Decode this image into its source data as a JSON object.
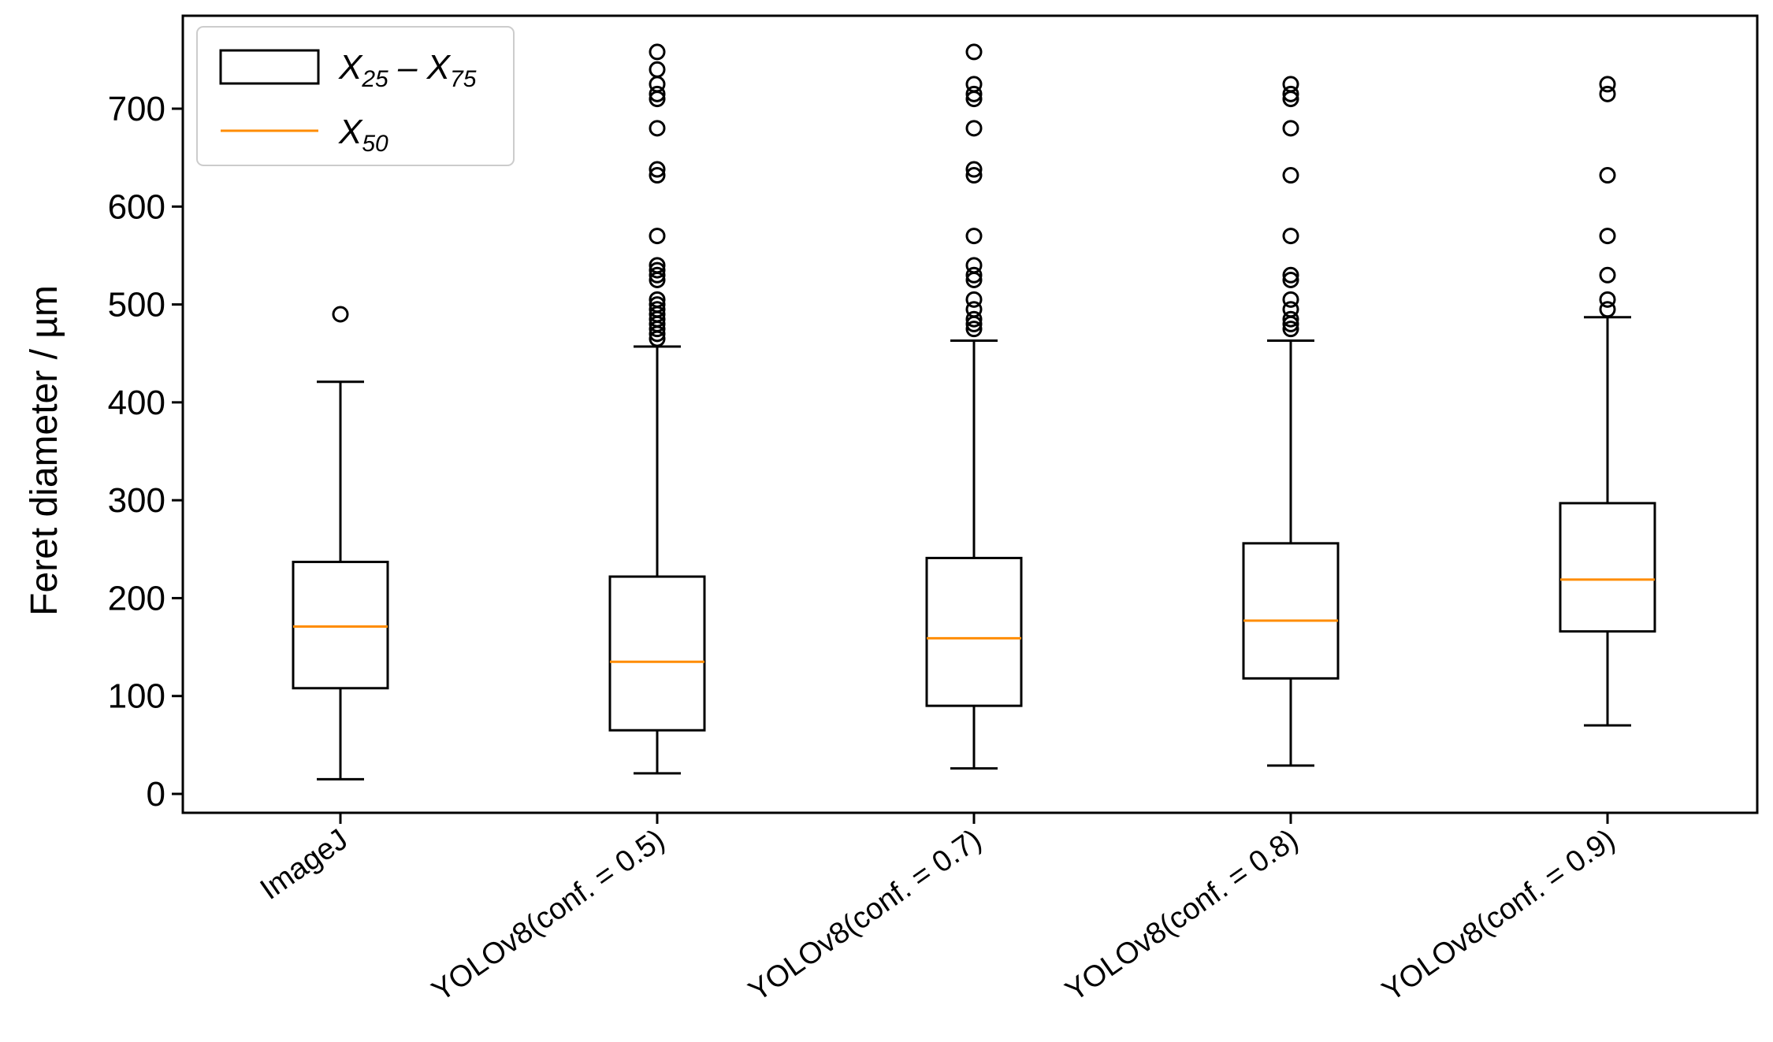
{
  "chart_data": {
    "type": "box",
    "ylabel": "Feret diameter / µm",
    "xlabel": "",
    "ylim": [
      -20,
      780
    ],
    "yticks": [
      0,
      100,
      200,
      300,
      400,
      500,
      600,
      700
    ],
    "grid": false,
    "legend_position": "top-left",
    "legend": {
      "box": {
        "main": "X",
        "sub1": "25",
        "dash": " – ",
        "main2": "X",
        "sub2": "75"
      },
      "median": {
        "main": "X",
        "sub": "50"
      }
    },
    "colors": {
      "box": "#000000",
      "median": "#ff8c00",
      "outlier": "#000000"
    },
    "categories": [
      "ImageJ",
      "YOLOv8(conf. = 0.5)",
      "YOLOv8(conf. = 0.7)",
      "YOLOv8(conf. = 0.8)",
      "YOLOv8(conf. = 0.9)"
    ],
    "boxes": [
      {
        "whisker_low": 15,
        "q1": 108,
        "median": 171,
        "q3": 237,
        "whisker_high": 421,
        "outliers": [
          490
        ]
      },
      {
        "whisker_low": 21,
        "q1": 65,
        "median": 135,
        "q3": 222,
        "whisker_high": 457,
        "outliers": [
          465,
          470,
          475,
          480,
          485,
          490,
          495,
          500,
          505,
          525,
          530,
          535,
          540,
          570,
          632,
          638,
          680,
          710,
          715,
          725,
          740,
          758
        ]
      },
      {
        "whisker_low": 26,
        "q1": 90,
        "median": 159,
        "q3": 241,
        "whisker_high": 463,
        "outliers": [
          475,
          480,
          485,
          495,
          505,
          525,
          530,
          540,
          570,
          632,
          638,
          680,
          710,
          715,
          725,
          758
        ]
      },
      {
        "whisker_low": 29,
        "q1": 118,
        "median": 177,
        "q3": 256,
        "whisker_high": 463,
        "outliers": [
          475,
          480,
          485,
          495,
          505,
          525,
          530,
          570,
          632,
          680,
          710,
          715,
          725
        ]
      },
      {
        "whisker_low": 70,
        "q1": 166,
        "median": 219,
        "q3": 297,
        "whisker_high": 487,
        "outliers": [
          495,
          505,
          530,
          570,
          632,
          715,
          725
        ]
      }
    ]
  }
}
